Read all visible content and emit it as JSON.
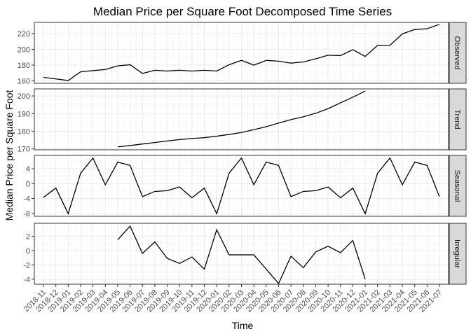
{
  "chart_data": {
    "type": "line",
    "title": "Median Price per Square Foot Decomposed Time Series",
    "xlabel": "Time",
    "ylabel": "Median Price per Square Foot",
    "grid": true,
    "x": [
      "2018-11",
      "2018-12",
      "2019-01",
      "2019-02",
      "2019-03",
      "2019-04",
      "2019-05",
      "2019-06",
      "2019-07",
      "2019-08",
      "2019-09",
      "2019-10",
      "2019-11",
      "2019-12",
      "2020-01",
      "2020-02",
      "2020-03",
      "2020-04",
      "2020-05",
      "2020-06",
      "2020-07",
      "2020-08",
      "2020-09",
      "2020-10",
      "2020-11",
      "2020-12",
      "2021-01",
      "2021-02",
      "2021-03",
      "2021-04",
      "2021-05",
      "2021-06",
      "2021-07"
    ],
    "panels": [
      {
        "name": "Observed",
        "ylim": [
          157,
          234
        ],
        "yticks": [
          160,
          180,
          200,
          220
        ],
        "values": [
          164.5,
          162.5,
          160.5,
          171.5,
          173,
          174.5,
          179,
          180.5,
          169.5,
          173.5,
          172.5,
          173.5,
          172.5,
          173.5,
          172.5,
          180.5,
          186,
          180,
          186,
          185,
          182.5,
          184,
          188,
          192.5,
          192,
          199.5,
          191,
          205,
          205,
          219.5,
          225,
          226,
          231.5
        ]
      },
      {
        "name": "Trend",
        "ylim": [
          169.5,
          204
        ],
        "yticks": [
          170,
          180,
          190,
          200
        ],
        "values": [
          null,
          null,
          null,
          null,
          null,
          null,
          171.2,
          171.9,
          172.8,
          173.6,
          174.5,
          175.3,
          175.9,
          176.4,
          177.2,
          178.2,
          179.3,
          180.9,
          182.6,
          184.6,
          186.6,
          188.2,
          190.2,
          192.8,
          196.1,
          199.3,
          202.8,
          null,
          null,
          null,
          null,
          null,
          null
        ]
      },
      {
        "name": "Seasonal",
        "ylim": [
          -8.8,
          7.6
        ],
        "yticks": [
          -8,
          -4,
          0,
          4
        ],
        "values": [
          -3.7,
          -1.2,
          -8.1,
          2.8,
          6.9,
          -0.3,
          5.8,
          4.9,
          -3.5,
          -2.1,
          -1.9,
          -0.9,
          -3.8,
          -1.2,
          -8.1,
          2.8,
          6.9,
          -0.3,
          5.8,
          4.9,
          -3.5,
          -2.1,
          -1.9,
          -0.9,
          -3.8,
          -1.2,
          -8.1,
          2.8,
          6.9,
          -0.3,
          5.8,
          4.9,
          -3.5
        ]
      },
      {
        "name": "Irregular",
        "ylim": [
          -4.7,
          3.8
        ],
        "yticks": [
          -4,
          -2,
          0,
          2
        ],
        "values": [
          null,
          null,
          null,
          null,
          null,
          null,
          1.5,
          3.4,
          -0.4,
          1.2,
          -1.1,
          -1.8,
          -0.9,
          -2.6,
          2.9,
          -0.6,
          -0.6,
          -0.6,
          -2.6,
          -4.6,
          -0.8,
          -2.4,
          -0.2,
          0.6,
          -0.3,
          1.4,
          -4.0,
          null,
          null,
          null,
          null,
          null,
          null
        ]
      }
    ]
  }
}
